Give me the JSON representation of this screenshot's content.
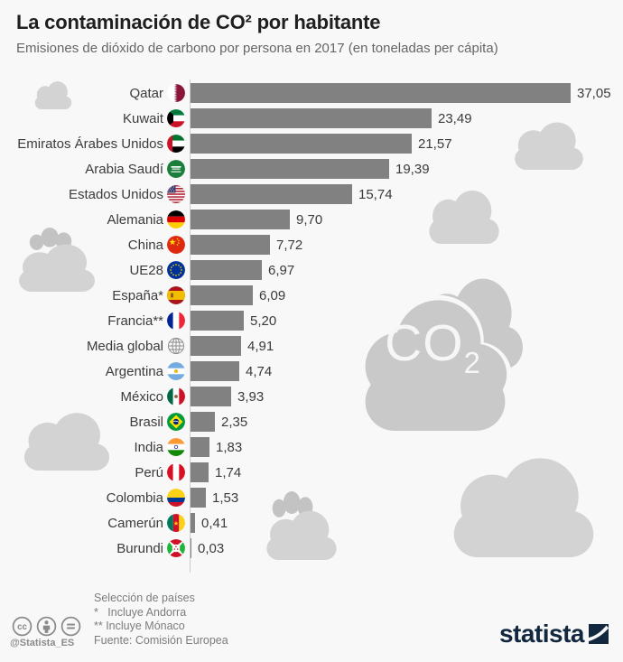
{
  "header": {
    "title": "La contaminación de CO² por habitante",
    "subtitle": "Emisiones de dióxido de carbono por persona en 2017 (en toneladas per cápita)"
  },
  "chart_data": {
    "type": "bar",
    "orientation": "horizontal",
    "title": "La contaminación de CO² por habitante",
    "subtitle": "Emisiones de dióxido de carbono por persona en 2017 (en toneladas per cápita)",
    "unit": "toneladas per cápita",
    "year": "2017",
    "xlim": [
      0,
      37.05
    ],
    "max_value": 37.05,
    "rows": [
      {
        "label": "Qatar",
        "flag": "qatar",
        "value": 37.05,
        "display": "37,05"
      },
      {
        "label": "Kuwait",
        "flag": "kuwait",
        "value": 23.49,
        "display": "23,49"
      },
      {
        "label": "Emiratos Árabes Unidos",
        "flag": "uae",
        "value": 21.57,
        "display": "21,57"
      },
      {
        "label": "Arabia Saudí",
        "flag": "saudi",
        "value": 19.39,
        "display": "19,39"
      },
      {
        "label": "Estados Unidos",
        "flag": "usa",
        "value": 15.74,
        "display": "15,74"
      },
      {
        "label": "Alemania",
        "flag": "germany",
        "value": 9.7,
        "display": "9,70"
      },
      {
        "label": "China",
        "flag": "china",
        "value": 7.72,
        "display": "7,72"
      },
      {
        "label": "UE28",
        "flag": "eu",
        "value": 6.97,
        "display": "6,97"
      },
      {
        "label": "España*",
        "flag": "spain",
        "value": 6.09,
        "display": "6,09"
      },
      {
        "label": "Francia**",
        "flag": "france",
        "value": 5.2,
        "display": "5,20"
      },
      {
        "label": "Media global",
        "flag": "globe",
        "value": 4.91,
        "display": "4,91"
      },
      {
        "label": "Argentina",
        "flag": "argentina",
        "value": 4.74,
        "display": "4,74"
      },
      {
        "label": "México",
        "flag": "mexico",
        "value": 3.93,
        "display": "3,93"
      },
      {
        "label": "Brasil",
        "flag": "brazil",
        "value": 2.35,
        "display": "2,35"
      },
      {
        "label": "India",
        "flag": "india",
        "value": 1.83,
        "display": "1,83"
      },
      {
        "label": "Perú",
        "flag": "peru",
        "value": 1.74,
        "display": "1,74"
      },
      {
        "label": "Colombia",
        "flag": "colombia",
        "value": 1.53,
        "display": "1,53"
      },
      {
        "label": "Camerún",
        "flag": "cameroon",
        "value": 0.41,
        "display": "0,41"
      },
      {
        "label": "Burundi",
        "flag": "burundi",
        "value": 0.03,
        "display": "0,03"
      }
    ]
  },
  "decorations": {
    "co2_main": "CO",
    "co2_sub": "2"
  },
  "footer": {
    "notes_line1": "Selección de países",
    "notes_line2": "*   Incluye Andorra",
    "notes_line3": "** Incluye Mónaco",
    "notes_line4": "Fuente: Comisión Europea",
    "handle": "@Statista_ES",
    "brand": "statista"
  },
  "colors": {
    "background": "#f8f8f8",
    "bar": "#818181",
    "cloud": "#d3d3d3",
    "cloud_dark": "#c3c3c3",
    "co2_cloud": "#c9c9c9",
    "axis": "#cccccc",
    "title_text": "#1f1f1f",
    "subtitle_text": "#666666",
    "label_text": "#3b3b3b",
    "footer_text": "#7c7c7c",
    "brand_navy": "#13283f"
  }
}
